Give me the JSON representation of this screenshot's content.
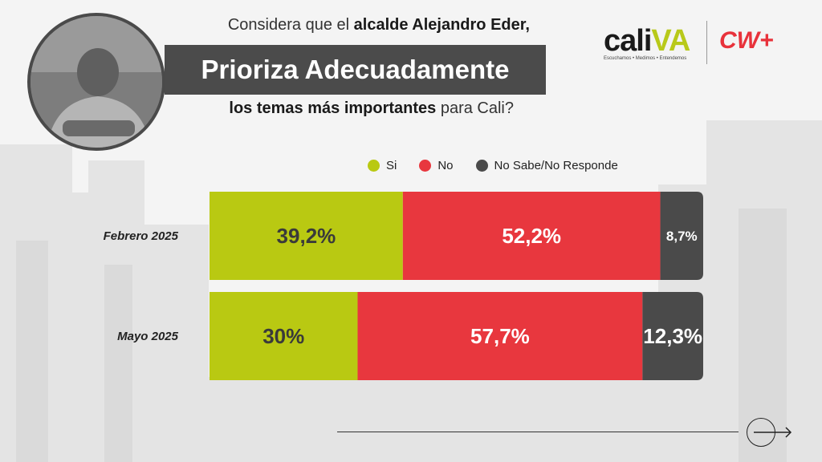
{
  "header": {
    "question_pre": "Considera que el ",
    "question_strong1": "alcalde Alejandro Eder,",
    "banner": "Prioriza Adecuadamente",
    "question_strong2": "los temas más importantes",
    "question_post": " para Cali?"
  },
  "brand": {
    "caliva_main": "cali",
    "caliva_accent": "VA",
    "caliva_tagline": "Escuchamos • Medimos • Entendemos",
    "partner": "CW+"
  },
  "colors": {
    "si": "#b9c912",
    "no": "#e8373e",
    "ns": "#4a4a4a"
  },
  "chart_data": {
    "type": "bar",
    "orientation": "horizontal-stacked-100",
    "categories": [
      "Febrero 2025",
      "Mayo 2025"
    ],
    "series": [
      {
        "name": "Si",
        "values": [
          39.2,
          30.0
        ],
        "labels": [
          "39,2%",
          "30%"
        ]
      },
      {
        "name": "No",
        "values": [
          52.2,
          57.7
        ],
        "labels": [
          "52,2%",
          "57,7%"
        ]
      },
      {
        "name": "No Sabe/No Responde",
        "values": [
          8.7,
          12.3
        ],
        "labels": [
          "8,7%",
          "12,3%"
        ]
      }
    ],
    "legend_position": "top",
    "xlim": [
      0,
      100
    ]
  }
}
